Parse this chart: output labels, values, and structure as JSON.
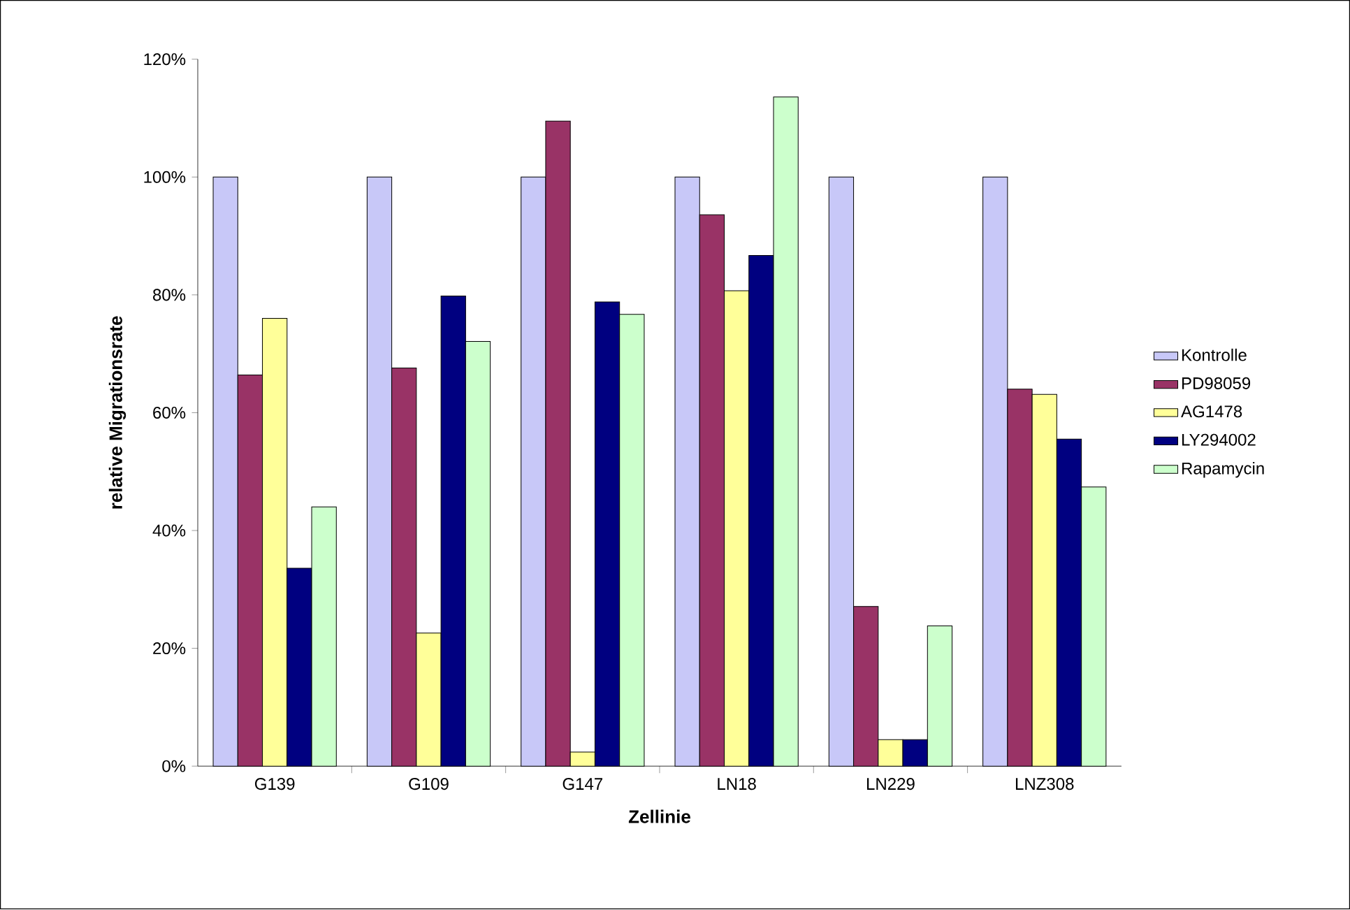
{
  "chart_data": {
    "type": "bar",
    "xlabel": "Zellinie",
    "ylabel": "relative Migrationsrate",
    "categories": [
      "G139",
      "G109",
      "G147",
      "LN18",
      "LN229",
      "LNZ308"
    ],
    "series": [
      {
        "name": "Kontrolle",
        "color": "#c8c8f8",
        "values": [
          100,
          100,
          100,
          100,
          100,
          100
        ]
      },
      {
        "name": "PD98059",
        "color": "#993366",
        "values": [
          66.4,
          67.6,
          109.5,
          93.6,
          27.1,
          64
        ]
      },
      {
        "name": "AG1478",
        "color": "#ffff99",
        "values": [
          76,
          22.6,
          2.4,
          80.7,
          4.5,
          63.1
        ]
      },
      {
        "name": "LY294002",
        "color": "#000080",
        "values": [
          33.6,
          79.8,
          78.8,
          86.7,
          4.5,
          55.5
        ]
      },
      {
        "name": "Rapamycin",
        "color": "#ccffcc",
        "values": [
          44,
          72.1,
          76.7,
          113.6,
          23.8,
          47.4
        ]
      }
    ],
    "ylim": [
      0,
      120
    ],
    "yticks": [
      {
        "value": 0,
        "label": "0%"
      },
      {
        "value": 20,
        "label": "20%"
      },
      {
        "value": 40,
        "label": "40%"
      },
      {
        "value": 60,
        "label": "60%"
      },
      {
        "value": 80,
        "label": "80%"
      },
      {
        "value": 100,
        "label": "100%"
      },
      {
        "value": 120,
        "label": "120%"
      }
    ],
    "grid": false,
    "legend": "right"
  }
}
